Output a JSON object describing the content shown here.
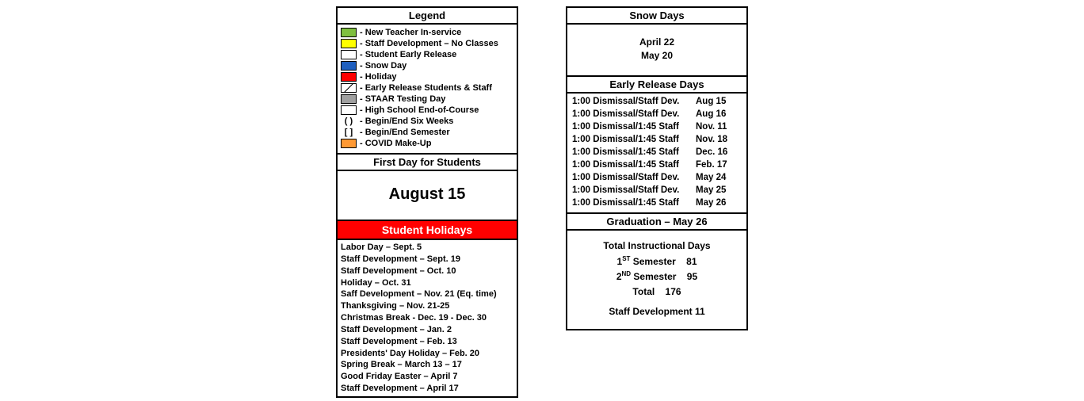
{
  "legend": {
    "title": "Legend",
    "items": [
      {
        "color": "#7fbf3f",
        "label": "- New Teacher In-service"
      },
      {
        "color": "#ffff00",
        "label": "- Staff Development – No Classes"
      },
      {
        "color": "#ffffff",
        "label": "- Student Early Release"
      },
      {
        "color": "#1f5fbf",
        "label": "- Snow Day"
      },
      {
        "color": "#ff0000",
        "label": "- Holiday"
      },
      {
        "diag": true,
        "label": "- Early Release Students & Staff"
      },
      {
        "color": "#a0a0a0",
        "label": "- STAAR Testing Day"
      },
      {
        "color": "#ffffff",
        "label": "- High School End-of-Course"
      },
      {
        "paren": "( )",
        "label": "- Begin/End Six Weeks"
      },
      {
        "paren": "[  ]",
        "label": "- Begin/End Semester"
      },
      {
        "color": "#ff9933",
        "label": "- COVID Make-Up"
      }
    ]
  },
  "first_day": {
    "title": "First Day for Students",
    "value": "August 15"
  },
  "student_holidays": {
    "title": "Student Holidays",
    "items": [
      "Labor Day – Sept. 5",
      "Staff Development – Sept. 19",
      "Staff Development  – Oct. 10",
      "Holiday – Oct. 31",
      "Saff Development – Nov. 21 (Eq. time)",
      "Thanksgiving – Nov. 21-25",
      "Christmas Break - Dec. 19 - Dec. 30",
      "Staff Development – Jan. 2",
      "Staff Development – Feb. 13",
      "Presidents' Day Holiday – Feb. 20",
      "Spring Break – March 13 – 17",
      "Good Friday Easter – April 7",
      "Staff Development – April 17"
    ]
  },
  "snow_days": {
    "title": "Snow Days",
    "lines": [
      "April 22",
      "May 20"
    ]
  },
  "early_release": {
    "title": "Early Release Days",
    "rows": [
      {
        "desc": "1:00 Dismissal/Staff Dev.",
        "date": "Aug  15"
      },
      {
        "desc": "1:00 Dismissal/Staff Dev.",
        "date": "Aug  16"
      },
      {
        "desc": "1:00 Dismissal/1:45 Staff",
        "date": "Nov. 11"
      },
      {
        "desc": "1:00 Dismissal/1:45 Staff",
        "date": "Nov. 18"
      },
      {
        "desc": "1:00 Dismissal/1:45 Staff",
        "date": "Dec. 16"
      },
      {
        "desc": "1:00 Dismissal/1:45 Staff",
        "date": "Feb. 17"
      },
      {
        "desc": "1:00 Dismissal/Staff Dev.",
        "date": "May 24"
      },
      {
        "desc": "1:00 Dismissal/Staff Dev.",
        "date": "May 25"
      },
      {
        "desc": "1:00 Dismissal/1:45 Staff",
        "date": "May 26"
      }
    ]
  },
  "graduation": "Graduation – May 26",
  "totals": {
    "heading": "Total Instructional Days",
    "sem1_label": "1",
    "sem1_sup": "ST",
    "sem1_text": " Semester",
    "sem1_val": "81",
    "sem2_label": "2",
    "sem2_sup": "ND",
    "sem2_text": " Semester",
    "sem2_val": "95",
    "total_label": "Total",
    "total_val": "176",
    "staff_dev": "Staff Development 11"
  }
}
